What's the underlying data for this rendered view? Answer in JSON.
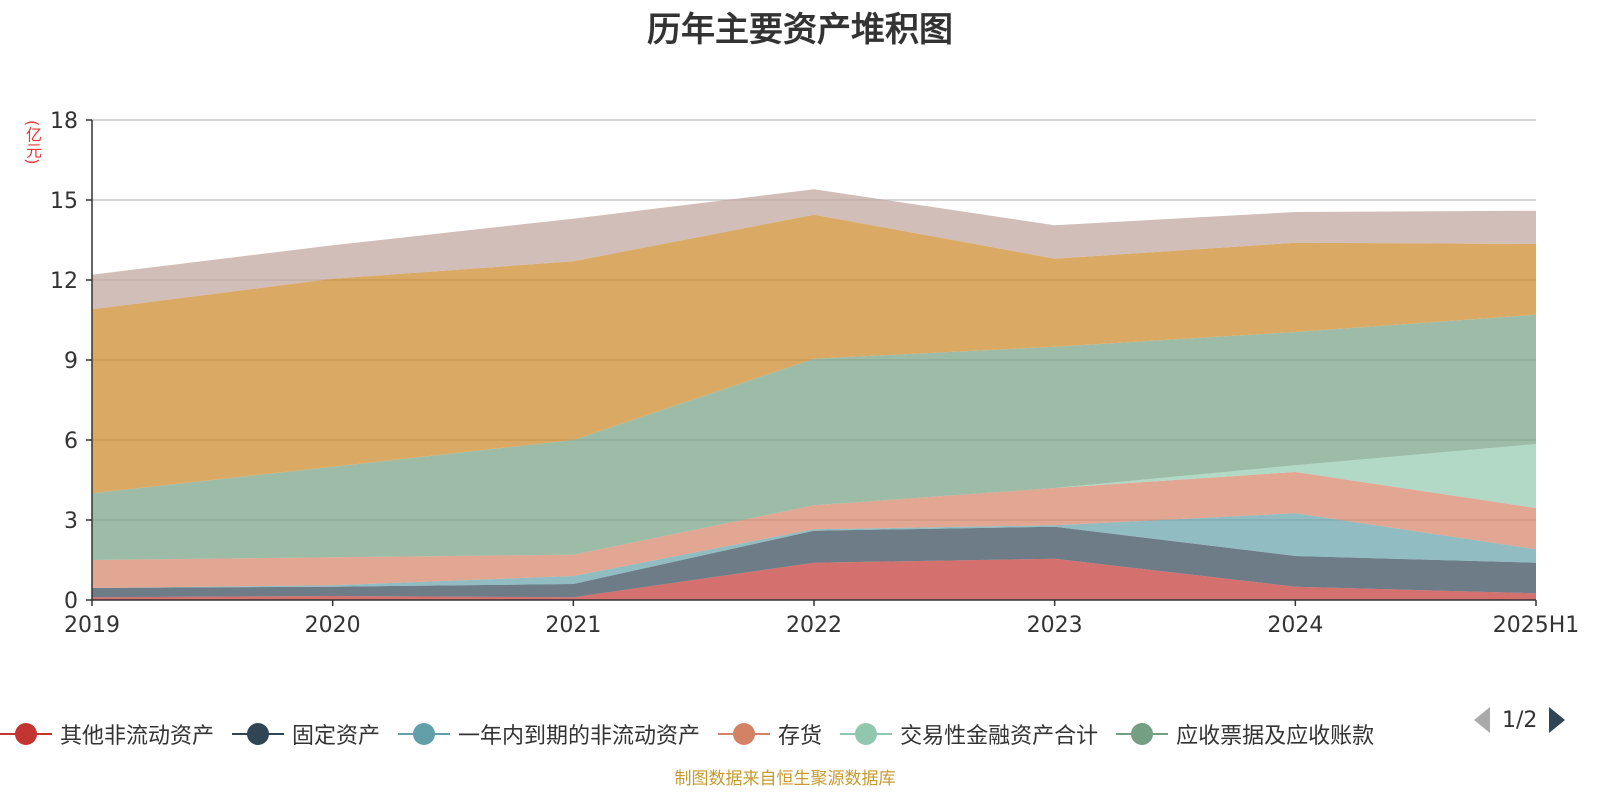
{
  "title": "历年主要资产堆积图",
  "unit": "(亿元)",
  "source": "制图数据来自恒生聚源数据库",
  "legend": {
    "items": [
      {
        "label": "其他非流动资产",
        "color": "#c23531"
      },
      {
        "label": "固定资产",
        "color": "#2f4554"
      },
      {
        "label": "一年内到期的非流动资产",
        "color": "#61a0a8"
      },
      {
        "label": "存货",
        "color": "#d48265"
      },
      {
        "label": "交易性金融资产合计",
        "color": "#91c7ae"
      },
      {
        "label": "应收票据及应收账款",
        "color": "#749f83"
      }
    ],
    "page": "1/2"
  },
  "chart_data": {
    "type": "area",
    "stacked": true,
    "x": [
      "2019",
      "2020",
      "2021",
      "2022",
      "2023",
      "2024",
      "2025H1"
    ],
    "ylim": [
      0,
      18
    ],
    "yticks": [
      0,
      3,
      6,
      9,
      12,
      15,
      18
    ],
    "grid": true,
    "series": [
      {
        "name": "其他非流动资产",
        "color": "#c23531",
        "values": [
          0.1,
          0.15,
          0.1,
          1.4,
          1.55,
          0.5,
          0.25
        ]
      },
      {
        "name": "固定资产",
        "color": "#2f4554",
        "values": [
          0.35,
          0.35,
          0.5,
          1.2,
          1.2,
          1.15,
          1.15
        ]
      },
      {
        "name": "一年内到期的非流动资产",
        "color": "#61a0a8",
        "values": [
          0.0,
          0.05,
          0.3,
          0.05,
          0.05,
          1.6,
          0.5
        ]
      },
      {
        "name": "存货",
        "color": "#d48265",
        "values": [
          1.05,
          1.05,
          0.8,
          0.9,
          1.4,
          1.55,
          1.55
        ]
      },
      {
        "name": "交易性金融资产合计",
        "color": "#91c7ae",
        "values": [
          0.0,
          0.0,
          0.0,
          0.0,
          0.0,
          0.25,
          2.4
        ]
      },
      {
        "name": "应收票据及应收账款",
        "color": "#749f83",
        "values": [
          2.5,
          3.4,
          4.3,
          5.5,
          5.3,
          5.0,
          4.85
        ]
      },
      {
        "name": "",
        "color": "#ca8622",
        "values": [
          6.9,
          7.05,
          6.7,
          5.4,
          3.3,
          3.35,
          2.65
        ]
      },
      {
        "name": "",
        "color": "#bda29a",
        "values": [
          1.3,
          1.25,
          1.6,
          0.95,
          1.25,
          1.15,
          1.25
        ]
      }
    ]
  }
}
